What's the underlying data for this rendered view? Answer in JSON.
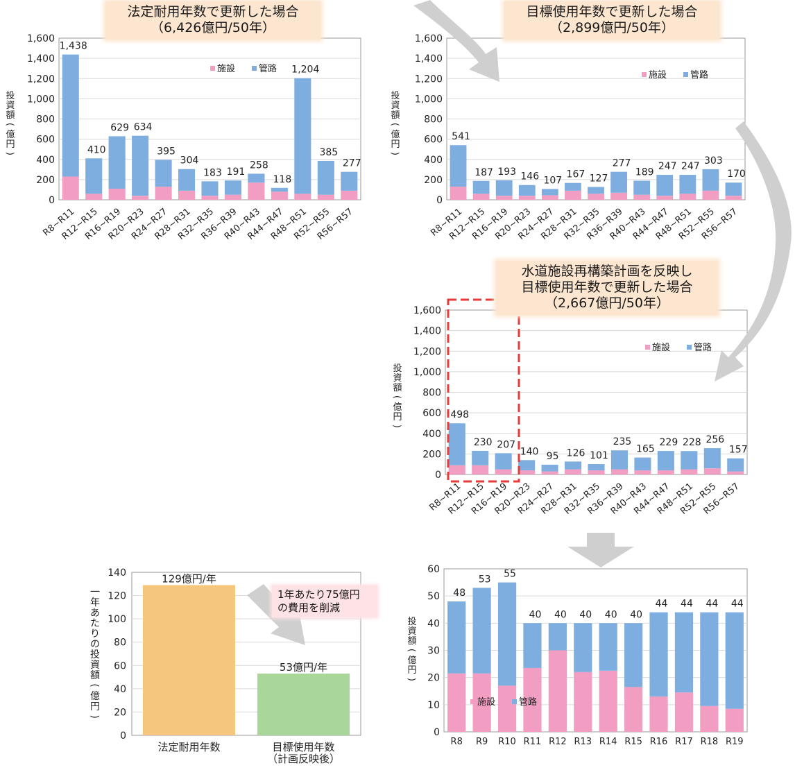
{
  "chart_data": [
    {
      "id": "chart1",
      "type": "bar",
      "stacked": true,
      "title": "法定耐用年数で更新した場合\n（6,426億円/50年）",
      "ylabel": "投資額(億円)",
      "ylim": [
        0,
        1600
      ],
      "yticks": [
        "0",
        "200",
        "400",
        "600",
        "800",
        "1,000",
        "1,200",
        "1,400",
        "1,600"
      ],
      "categories": [
        "R8~R11",
        "R12~R15",
        "R16~R19",
        "R20~R23",
        "R24~R27",
        "R28~R31",
        "R32~R35",
        "R36~R39",
        "R40~R43",
        "R44~R47",
        "R48~R51",
        "R52~R55",
        "R56~R57"
      ],
      "series": [
        {
          "name": "施設",
          "color": "#f19ec2",
          "values": [
            230,
            60,
            110,
            40,
            130,
            90,
            40,
            50,
            170,
            80,
            60,
            50,
            90
          ]
        },
        {
          "name": "管路",
          "color": "#7eaee0",
          "values": [
            1208,
            350,
            519,
            594,
            265,
            214,
            143,
            141,
            88,
            38,
            1144,
            335,
            187
          ]
        }
      ],
      "totals": [
        "1,438",
        "410",
        "629",
        "634",
        "395",
        "304",
        "183",
        "191",
        "258",
        "118",
        "1,204",
        "385",
        "277"
      ],
      "legend": "top-right"
    },
    {
      "id": "chart2",
      "type": "bar",
      "stacked": true,
      "title": "目標使用年数で更新した場合\n（2,899億円/50年）",
      "ylabel": "投資額(億円)",
      "ylim": [
        0,
        1600
      ],
      "yticks": [
        "0",
        "200",
        "400",
        "600",
        "800",
        "1,000",
        "1,200",
        "1,400",
        "1,600"
      ],
      "categories": [
        "R8~R11",
        "R12~R15",
        "R16~R19",
        "R20~R23",
        "R24~R27",
        "R28~R31",
        "R32~R35",
        "R36~R39",
        "R40~R43",
        "R44~R47",
        "R48~R51",
        "R52~R55",
        "R56~R57"
      ],
      "series": [
        {
          "name": "施設",
          "color": "#f19ec2",
          "values": [
            130,
            60,
            40,
            40,
            45,
            90,
            60,
            70,
            50,
            40,
            60,
            90,
            40
          ]
        },
        {
          "name": "管路",
          "color": "#7eaee0",
          "values": [
            411,
            127,
            153,
            106,
            62,
            77,
            67,
            207,
            139,
            207,
            187,
            213,
            130
          ]
        }
      ],
      "totals": [
        "541",
        "187",
        "193",
        "146",
        "107",
        "167",
        "127",
        "277",
        "189",
        "247",
        "247",
        "303",
        "170"
      ],
      "legend": "top-right"
    },
    {
      "id": "chart3",
      "type": "bar",
      "stacked": true,
      "title": "水道施設再構築計画を反映し\n目標使用年数で更新した場合\n（2,667億円/50年）",
      "ylabel": "投資額(億円)",
      "ylim": [
        0,
        1600
      ],
      "yticks": [
        "0",
        "200",
        "400",
        "600",
        "800",
        "1,000",
        "1,200",
        "1,400",
        "1,600"
      ],
      "categories": [
        "R8~R11",
        "R12~R15",
        "R16~R19",
        "R20~R23",
        "R24~R27",
        "R28~R31",
        "R32~R35",
        "R36~R39",
        "R40~R43",
        "R44~R47",
        "R48~R51",
        "R52~R55",
        "R56~R57"
      ],
      "series": [
        {
          "name": "施設",
          "color": "#f19ec2",
          "values": [
            90,
            90,
            50,
            40,
            30,
            50,
            40,
            50,
            40,
            40,
            50,
            60,
            30
          ]
        },
        {
          "name": "管路",
          "color": "#7eaee0",
          "values": [
            408,
            140,
            157,
            100,
            65,
            76,
            61,
            185,
            125,
            189,
            178,
            196,
            127
          ]
        }
      ],
      "totals": [
        "498",
        "230",
        "207",
        "140",
        "95",
        "126",
        "101",
        "235",
        "165",
        "229",
        "228",
        "256",
        "157"
      ],
      "legend": "top-right",
      "highlight_range": [
        "R8~R11",
        "R16~R19"
      ]
    },
    {
      "id": "chart4",
      "type": "bar",
      "title": "",
      "ylabel": "一年あたりの投資額(億円)",
      "ylim": [
        0,
        140
      ],
      "yticks": [
        "0",
        "20",
        "40",
        "60",
        "80",
        "100",
        "120",
        "140"
      ],
      "categories": [
        "法定耐用年数",
        "目標使用年数\n（計画反映後）"
      ],
      "values": [
        129,
        53
      ],
      "colors": [
        "#f5c77e",
        "#a9d79a"
      ],
      "value_labels": [
        "129億円/年",
        "53億円/年"
      ],
      "annotation": "1年あたり75億円\nの費用を削減"
    },
    {
      "id": "chart5",
      "type": "bar",
      "stacked": true,
      "title": "",
      "ylabel": "投資額(億円)",
      "ylim": [
        0,
        60
      ],
      "yticks": [
        "0",
        "10",
        "20",
        "30",
        "40",
        "50",
        "60"
      ],
      "categories": [
        "R8",
        "R9",
        "R10",
        "R11",
        "R12",
        "R13",
        "R14",
        "R15",
        "R16",
        "R17",
        "R18",
        "R19"
      ],
      "series": [
        {
          "name": "施設",
          "color": "#f19ec2",
          "values": [
            21.5,
            21.5,
            17,
            23.5,
            30,
            22,
            22.5,
            16.5,
            13,
            14.5,
            9.5,
            8.5
          ]
        },
        {
          "name": "管路",
          "color": "#7eaee0",
          "values": [
            26.5,
            31.5,
            38,
            16.5,
            10,
            18,
            17.5,
            23.5,
            31,
            29.5,
            34.5,
            35.5
          ]
        }
      ],
      "totals": [
        "48",
        "53",
        "55",
        "40",
        "40",
        "40",
        "40",
        "40",
        "44",
        "44",
        "44",
        "44"
      ],
      "legend": "bottom-left"
    }
  ]
}
